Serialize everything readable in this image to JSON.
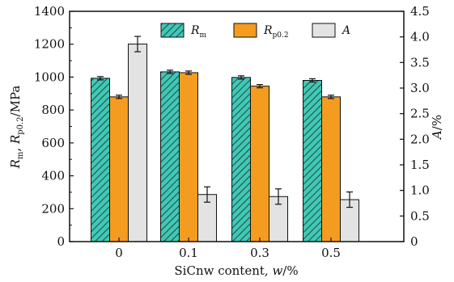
{
  "chart_data": {
    "type": "bar",
    "x_axis": {
      "categories": [
        "0",
        "0.1",
        "0.3",
        "0.5"
      ],
      "label": "SiCnw content, w/%"
    },
    "y_left": {
      "label": "Rm, Rp0.2/MPa",
      "ylim": [
        0,
        1400
      ],
      "ticks": [
        "0",
        "200",
        "400",
        "600",
        "800",
        "1000",
        "1200",
        "1400"
      ]
    },
    "y_right": {
      "label": "A/%",
      "ylim": [
        0,
        4.5
      ],
      "ticks": [
        "0",
        "0.5",
        "1.0",
        "1.5",
        "2.0",
        "2.5",
        "3.0",
        "3.5",
        "4.0",
        "4.5"
      ]
    },
    "series": [
      {
        "name": "Rm",
        "axis": "left",
        "color": "#3ec9b6",
        "pattern": "hatched",
        "values": [
          993,
          1032,
          998,
          980
        ],
        "errors": [
          10,
          10,
          10,
          10
        ]
      },
      {
        "name": "Rp0.2",
        "axis": "left",
        "color": "#f39c1f",
        "pattern": "solid",
        "values": [
          880,
          1027,
          945,
          880
        ],
        "errors": [
          10,
          10,
          10,
          10
        ]
      },
      {
        "name": "A",
        "axis": "right",
        "color": "#e3e3e3",
        "pattern": "solid",
        "values": [
          3.86,
          0.92,
          0.88,
          0.82
        ],
        "errors": [
          0.15,
          0.15,
          0.15,
          0.15
        ]
      }
    ],
    "legend_position": "top-right",
    "grid": false
  }
}
